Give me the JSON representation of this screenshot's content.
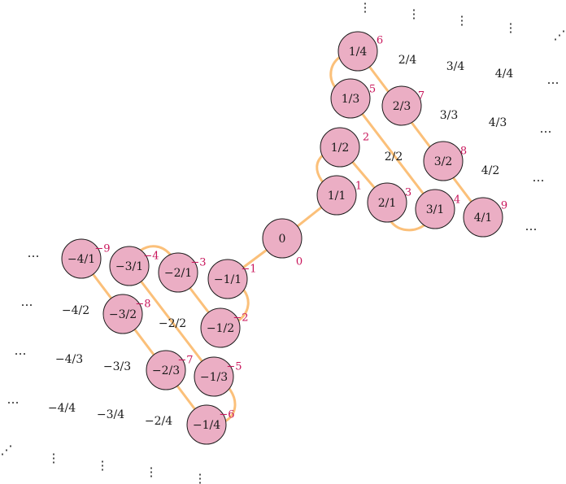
{
  "colors": {
    "node_fill": "#ebaec4",
    "path": "#fbc07a",
    "index": "#c8145a"
  },
  "nodes": [
    {
      "label": "0",
      "index": "0"
    },
    {
      "label": "1/1",
      "index": "1"
    },
    {
      "label": "1/2",
      "index": "2"
    },
    {
      "label": "2/1",
      "index": "3"
    },
    {
      "label": "3/1",
      "index": "4"
    },
    {
      "label": "1/3",
      "index": "5"
    },
    {
      "label": "1/4",
      "index": "6"
    },
    {
      "label": "2/3",
      "index": "7"
    },
    {
      "label": "3/2",
      "index": "8"
    },
    {
      "label": "4/1",
      "index": "9"
    },
    {
      "label": "−1/1",
      "index": "−1"
    },
    {
      "label": "−1/2",
      "index": "−2"
    },
    {
      "label": "−2/1",
      "index": "−3"
    },
    {
      "label": "−3/1",
      "index": "−4"
    },
    {
      "label": "−1/3",
      "index": "−5"
    },
    {
      "label": "−1/4",
      "index": "−6"
    },
    {
      "label": "−2/3",
      "index": "−7"
    },
    {
      "label": "−3/2",
      "index": "−8"
    },
    {
      "label": "−4/1",
      "index": "−9"
    }
  ],
  "fractions": [
    "2/4",
    "3/4",
    "4/4",
    "3/3",
    "4/3",
    "2/2",
    "4/2",
    "−4/2",
    "−2/2",
    "−4/3",
    "−3/3",
    "−4/4",
    "−3/4",
    "−2/4"
  ],
  "ellipses": {
    "horizontal": "…",
    "vertical": "⋮",
    "diagonal": "⋰"
  }
}
